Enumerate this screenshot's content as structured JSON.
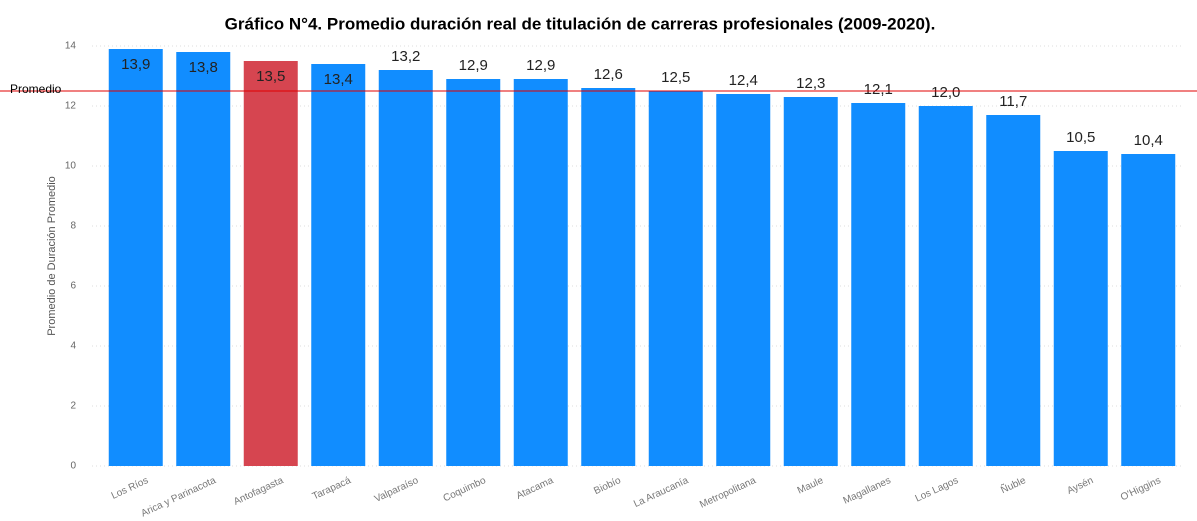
{
  "chart_data": {
    "type": "bar",
    "title": "Gráfico N°4. Promedio duración real de titulación de carreras profesionales (2009-2020).",
    "y_label": "Promedio de Duración Promedio",
    "categories": [
      "Los Ríos",
      "Arica y Parinacota",
      "Antofagasta",
      "Tarapacá",
      "Valparaíso",
      "Coquimbo",
      "Atacama",
      "Biobío",
      "La Araucanía",
      "Metropolitana",
      "Maule",
      "Magallanes",
      "Los Lagos",
      "Ñuble",
      "Aysén",
      "O'Higgins"
    ],
    "values": [
      13.9,
      13.8,
      13.5,
      13.4,
      13.2,
      12.9,
      12.9,
      12.6,
      12.5,
      12.4,
      12.3,
      12.1,
      12.0,
      11.7,
      10.5,
      10.4
    ],
    "value_labels": [
      "13,9",
      "13,8",
      "13,5",
      "13,4",
      "13,2",
      "12,9",
      "12,9",
      "12,6",
      "12,5",
      "12,4",
      "12,3",
      "12,1",
      "12,0",
      "11,7",
      "10,5",
      "10,4"
    ],
    "colors": [
      "#118dff",
      "#118dff",
      "#d64550",
      "#118dff",
      "#118dff",
      "#118dff",
      "#118dff",
      "#118dff",
      "#118dff",
      "#118dff",
      "#118dff",
      "#118dff",
      "#118dff",
      "#118dff",
      "#118dff",
      "#118dff"
    ],
    "ylim": [
      0,
      14
    ],
    "yticks": [
      0,
      2,
      4,
      6,
      8,
      10,
      12,
      14
    ],
    "grid": true,
    "reference_line": {
      "label": "Promedio",
      "value": 12.5,
      "color": "#e00000"
    }
  }
}
